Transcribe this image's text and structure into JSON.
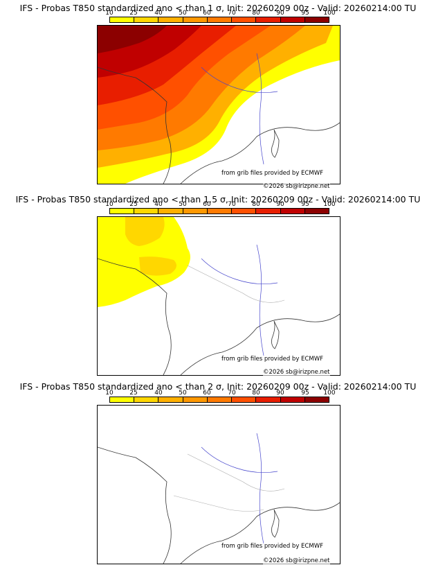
{
  "colorbar": {
    "ticks": [
      "10",
      "25",
      "40",
      "50",
      "60",
      "70",
      "80",
      "90",
      "95",
      "100"
    ],
    "colors": [
      "#ffff00",
      "#ffd700",
      "#ffb000",
      "#ff9800",
      "#ff7a00",
      "#ff5000",
      "#e81e00",
      "#c00000",
      "#8c0000"
    ]
  },
  "credits": {
    "source": "from grib files provided by ECMWF",
    "copyright": "©2026 sb@irizpne.net"
  },
  "panels": [
    {
      "title": "IFS - Probas T850  standardized ano < than 1 σ, Init: 20260209 00z - Valid: 20260214:00 TU"
    },
    {
      "title": "IFS - Probas T850  standardized ano < than 1.5 σ, Init: 20260209 00z - Valid: 20260214:00 TU"
    },
    {
      "title": "IFS - Probas T850  standardized ano < than 2 σ, Init: 20260209 00z - Valid: 20260214:00 TU"
    }
  ]
}
